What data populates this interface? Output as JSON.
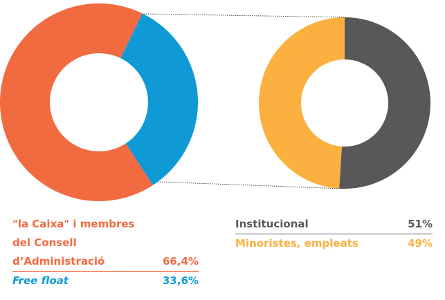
{
  "chart_data": [
    {
      "type": "pie",
      "categories": [
        "\"la Caixa\" i membres del Consell d’Administració",
        "Free float"
      ],
      "values": [
        66.4,
        33.6
      ],
      "value_labels": [
        "66,4%",
        "33,6%"
      ],
      "colors": [
        "#f26a40",
        "#0f9ad6"
      ]
    },
    {
      "type": "pie",
      "categories": [
        "Institucional",
        "Minoristes, empleats"
      ],
      "values": [
        51,
        49
      ],
      "value_labels": [
        "51%",
        "49%"
      ],
      "colors": [
        "#58585a",
        "#fbb040"
      ]
    }
  ]
}
